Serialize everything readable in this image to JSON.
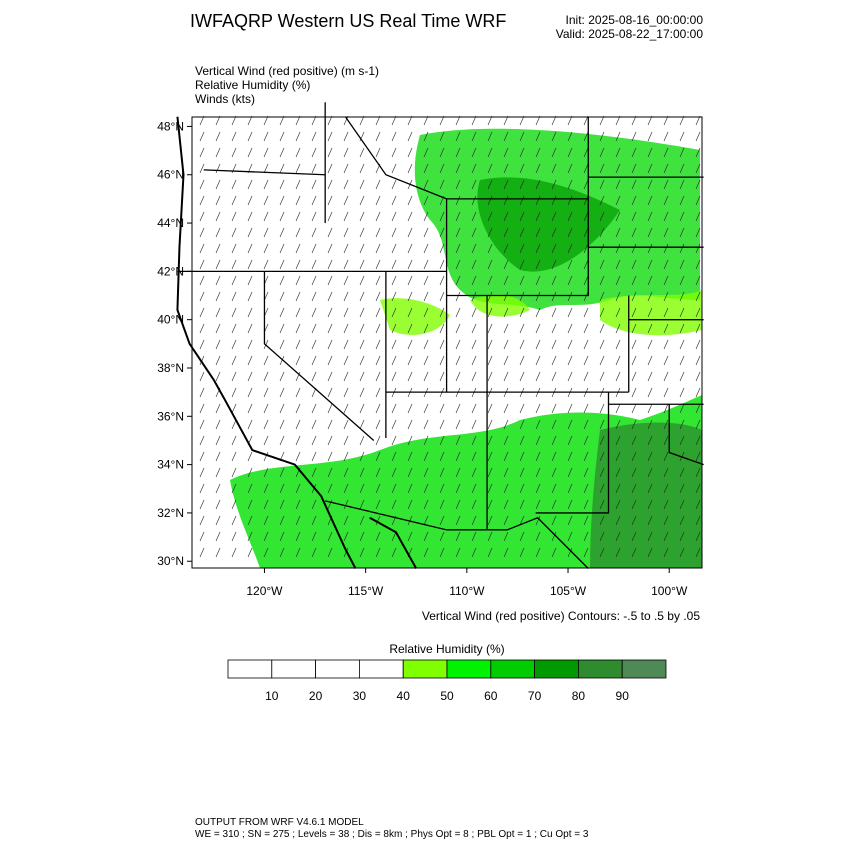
{
  "header": {
    "title": "IWFAQRP Western US Real Time WRF",
    "init": "Init: 2025-08-16_00:00:00",
    "valid": "Valid: 2025-08-22_17:00:00"
  },
  "fields": [
    "Vertical Wind (red positive)   (m s-1)",
    "Relative Humidity   (%)",
    "Winds   (kts)"
  ],
  "map": {
    "lat_ticks": [
      {
        "value": 48,
        "label": "48°N"
      },
      {
        "value": 46,
        "label": "46°N"
      },
      {
        "value": 44,
        "label": "44°N"
      },
      {
        "value": 42,
        "label": "42°N"
      },
      {
        "value": 40,
        "label": "40°N"
      },
      {
        "value": 38,
        "label": "38°N"
      },
      {
        "value": 36,
        "label": "36°N"
      },
      {
        "value": 34,
        "label": "34°N"
      },
      {
        "value": 32,
        "label": "32°N"
      },
      {
        "value": 30,
        "label": "30°N"
      }
    ],
    "lon_ticks": [
      {
        "value": -120,
        "label": "120°W"
      },
      {
        "value": -115,
        "label": "115°W"
      },
      {
        "value": -110,
        "label": "110°W"
      },
      {
        "value": -105,
        "label": "105°W"
      },
      {
        "value": -100,
        "label": "100°W"
      }
    ],
    "contour_note": "Vertical Wind (red positive) Contours: -.5 to .5 by .05"
  },
  "colorbar": {
    "title": "Relative Humidity  (%)",
    "ticks": [
      10,
      20,
      30,
      40,
      50,
      60,
      70,
      80,
      90
    ],
    "colors": [
      "#ffffff",
      "#ffffff",
      "#ffffff",
      "#ffffff",
      "#7fff00",
      "#00f200",
      "#00cc00",
      "#009a00",
      "#2e8b2e",
      "#4f8a56"
    ]
  },
  "footer": {
    "line1": "OUTPUT FROM WRF V4.6.1 MODEL",
    "line2": "WE = 310 ; SN = 275 ; Levels = 38 ; Dis = 8km ; Phys Opt = 8 ; PBL Opt = 1 ; Cu Opt = 3"
  }
}
